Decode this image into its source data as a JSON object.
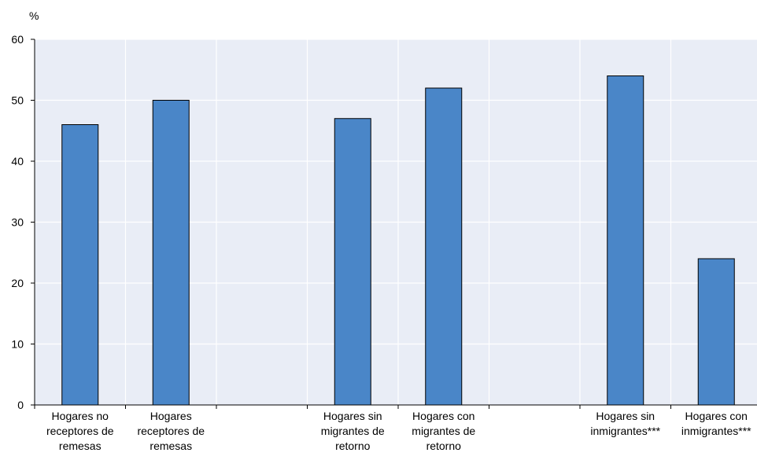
{
  "chart_data": {
    "type": "bar",
    "ylabel": "%",
    "ylim": [
      0,
      60
    ],
    "yticks": [
      0,
      10,
      20,
      30,
      40,
      50,
      60
    ],
    "grid": true,
    "categories": [
      [
        "Hogares no",
        "receptores de",
        "remesas"
      ],
      [
        "Hogares",
        "receptores de",
        "remesas"
      ],
      [],
      [
        "Hogares sin",
        "migrantes de",
        "retorno"
      ],
      [
        "Hogares con",
        "migrantes de",
        "retorno"
      ],
      [],
      [
        "Hogares sin",
        "inmigrantes***"
      ],
      [
        "Hogares con",
        "inmigrantes***"
      ]
    ],
    "values": [
      46,
      50,
      null,
      47,
      52,
      null,
      54,
      24
    ],
    "colors": {
      "bar": "#4a86c8",
      "bar_stroke": "#000000",
      "plot_bg": "#e9edf6",
      "grid": "#ffffff"
    }
  }
}
